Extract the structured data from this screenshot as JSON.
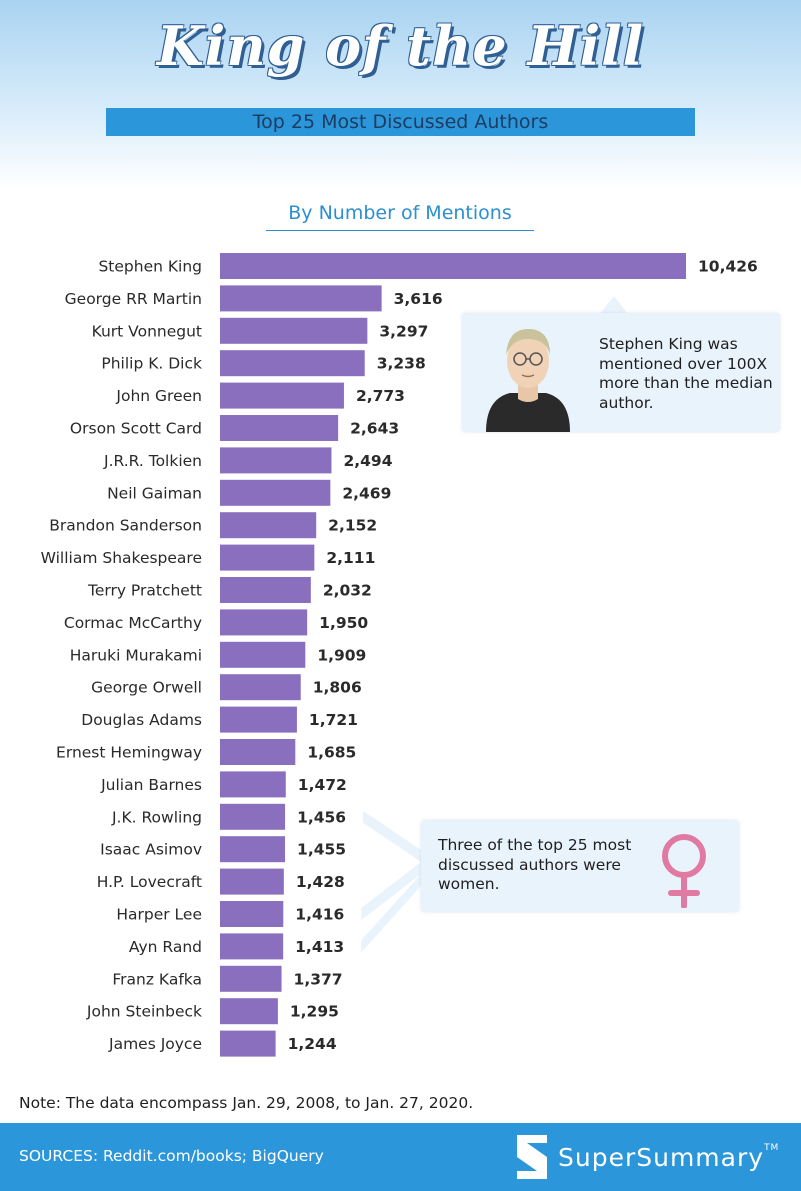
{
  "header": {
    "title": "King of the Hill",
    "subtitle": "Top 25 Most Discussed Authors"
  },
  "chart_heading": "By Number of Mentions",
  "colors": {
    "bar": "#8a6fbe",
    "header_bar": "#2b96d9",
    "heading_text": "#2b8fd0",
    "callout_bg": "#e9f3fc",
    "female_symbol": "#e07aa3"
  },
  "chart_data": {
    "type": "bar",
    "orientation": "horizontal",
    "title": "By Number of Mentions",
    "categories": [
      "Stephen King",
      "George RR Martin",
      "Kurt Vonnegut",
      "Philip K. Dick",
      "John Green",
      "Orson Scott Card",
      "J.R.R. Tolkien",
      "Neil Gaiman",
      "Brandon Sanderson",
      "William Shakespeare",
      "Terry Pratchett",
      "Cormac McCarthy",
      "Haruki Murakami",
      "George Orwell",
      "Douglas Adams",
      "Ernest Hemingway",
      "Julian Barnes",
      "J.K. Rowling",
      "Isaac Asimov",
      "H.P. Lovecraft",
      "Harper Lee",
      "Ayn Rand",
      "Franz Kafka",
      "John Steinbeck",
      "James Joyce"
    ],
    "values": [
      10426,
      3616,
      3297,
      3238,
      2773,
      2643,
      2494,
      2469,
      2152,
      2111,
      2032,
      1950,
      1909,
      1806,
      1721,
      1685,
      1472,
      1456,
      1455,
      1428,
      1416,
      1413,
      1377,
      1295,
      1244
    ],
    "value_labels": [
      "10,426",
      "3,616",
      "3,297",
      "3,238",
      "2,773",
      "2,643",
      "2,494",
      "2,469",
      "2,152",
      "2,111",
      "2,032",
      "1,950",
      "1,909",
      "1,806",
      "1,721",
      "1,685",
      "1,472",
      "1,456",
      "1,455",
      "1,428",
      "1,416",
      "1,413",
      "1,377",
      "1,295",
      "1,244"
    ],
    "grid": false
  },
  "callouts": {
    "king": "Stephen King was mentioned over 100X more than the median author.",
    "women": "Three of the top 25 most discussed authors were women.",
    "women_highlight": [
      "J.K. Rowling",
      "Harper Lee",
      "Ayn Rand"
    ]
  },
  "note": "Note: The data encompass Jan. 29, 2008, to Jan. 27, 2020.",
  "footer": {
    "sources": "SOURCES: Reddit.com/books; BigQuery",
    "brand": "SuperSummary",
    "trademark": "TM"
  }
}
